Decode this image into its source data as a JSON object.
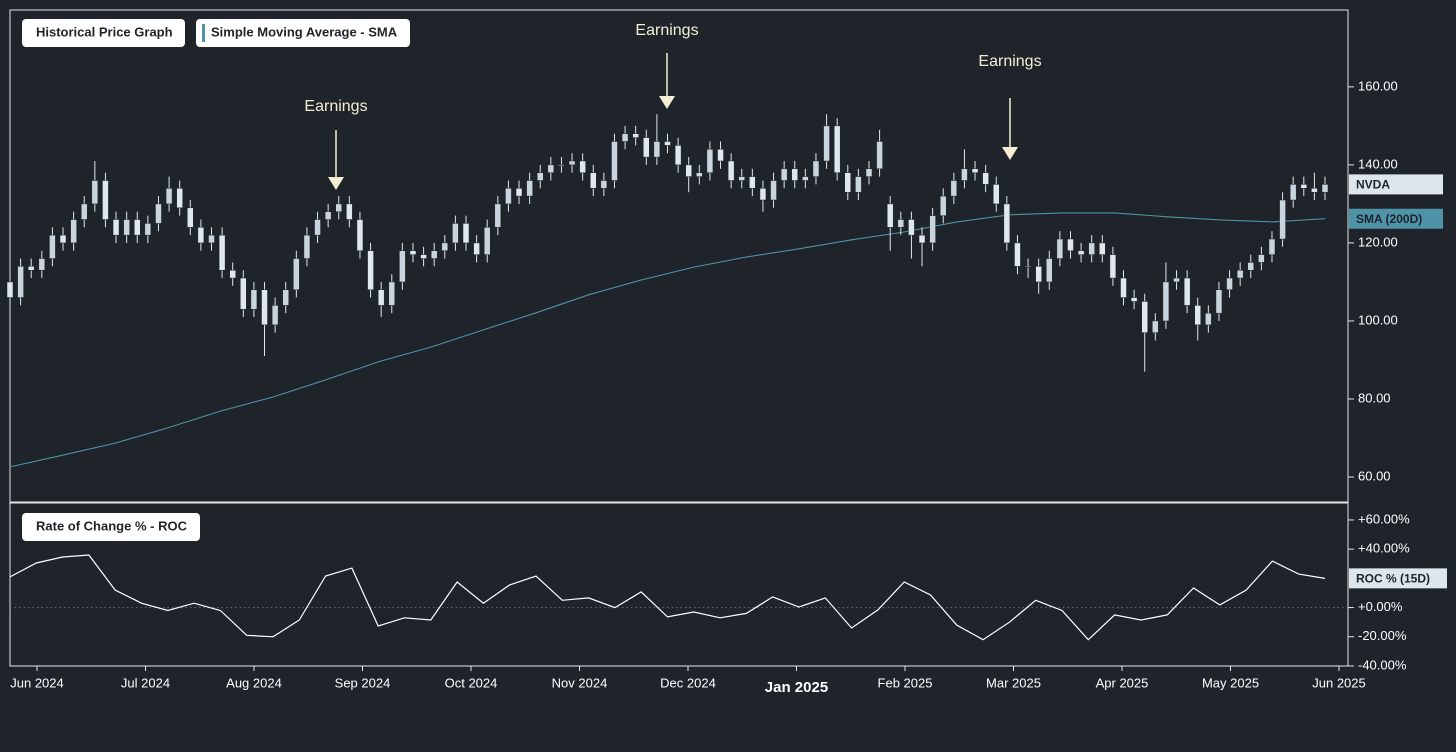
{
  "chart_data": [
    {
      "type": "candlestick",
      "legend": [
        "Historical Price Graph",
        "Simple Moving Average - SMA"
      ],
      "annotations": [
        "Earnings",
        "Earnings",
        "Earnings"
      ],
      "candles": {
        "name": "NVDA",
        "color": "#dfe8ee",
        "open": [
          110,
          106,
          114,
          113,
          116,
          122,
          120,
          126,
          130,
          136,
          126,
          122,
          126,
          122,
          125,
          130,
          134,
          129,
          124,
          120,
          122,
          113,
          111,
          103,
          108,
          99,
          104,
          108,
          116,
          122,
          126,
          128,
          130,
          126,
          118,
          108,
          104,
          110,
          118,
          117,
          116,
          118,
          120,
          125,
          120,
          117,
          124,
          130,
          134,
          132,
          136,
          138,
          140,
          140,
          141,
          138,
          134,
          136,
          146,
          148,
          147,
          142,
          146,
          145,
          140,
          137,
          138,
          144,
          141,
          136,
          137,
          134,
          131,
          136,
          139,
          136,
          137,
          141,
          150,
          138,
          133,
          137,
          139,
          130,
          124,
          126,
          122,
          120,
          127,
          132,
          136,
          139,
          138,
          135,
          130,
          120,
          114,
          114,
          110,
          116,
          121,
          118,
          117,
          120,
          117,
          111,
          106,
          105,
          97,
          100,
          110,
          111,
          104,
          99,
          102,
          108,
          111,
          113,
          115,
          117,
          121,
          131,
          135,
          134,
          133
        ],
        "high": [
          112,
          116,
          116,
          118,
          124,
          124,
          128,
          132,
          141,
          138,
          128,
          128,
          128,
          127,
          132,
          137,
          136,
          131,
          126,
          124,
          124,
          115,
          113,
          110,
          110,
          106,
          110,
          118,
          124,
          128,
          130,
          132,
          132,
          128,
          120,
          110,
          112,
          120,
          120,
          119,
          120,
          122,
          127,
          127,
          122,
          126,
          132,
          136,
          136,
          138,
          140,
          142,
          142,
          143,
          143,
          140,
          138,
          148,
          150,
          150,
          149,
          153,
          148,
          147,
          142,
          140,
          146,
          146,
          143,
          139,
          139,
          136,
          138,
          141,
          141,
          139,
          143,
          153,
          152,
          140,
          139,
          141,
          149,
          132,
          128,
          128,
          124,
          129,
          134,
          138,
          144,
          141,
          140,
          137,
          132,
          122,
          116,
          116,
          118,
          123,
          123,
          120,
          122,
          122,
          119,
          113,
          108,
          107,
          102,
          115,
          113,
          113,
          106,
          104,
          110,
          113,
          115,
          117,
          119,
          123,
          133,
          137,
          137,
          138,
          137
        ],
        "low": [
          104,
          104,
          111,
          111,
          114,
          118,
          118,
          124,
          128,
          124,
          120,
          120,
          120,
          120,
          123,
          128,
          127,
          122,
          118,
          118,
          111,
          109,
          101,
          101,
          91,
          97,
          102,
          106,
          114,
          120,
          124,
          126,
          124,
          116,
          106,
          101,
          102,
          108,
          115,
          114,
          114,
          116,
          118,
          118,
          115,
          115,
          122,
          128,
          130,
          130,
          134,
          136,
          138,
          138,
          136,
          132,
          132,
          134,
          144,
          145,
          140,
          140,
          143,
          138,
          133,
          135,
          136,
          139,
          134,
          134,
          132,
          128,
          129,
          134,
          134,
          134,
          135,
          139,
          136,
          131,
          131,
          135,
          137,
          118,
          122,
          116,
          114,
          118,
          125,
          130,
          134,
          136,
          133,
          128,
          118,
          112,
          111,
          107,
          108,
          114,
          116,
          115,
          115,
          115,
          109,
          104,
          103,
          87,
          95,
          98,
          108,
          102,
          95,
          97,
          100,
          106,
          109,
          111,
          113,
          115,
          119,
          129,
          132,
          131,
          131
        ],
        "close": [
          106,
          114,
          113,
          116,
          122,
          120,
          126,
          130,
          136,
          126,
          122,
          126,
          122,
          125,
          130,
          134,
          129,
          124,
          120,
          122,
          113,
          111,
          103,
          108,
          99,
          104,
          108,
          116,
          122,
          126,
          128,
          130,
          126,
          118,
          108,
          104,
          110,
          118,
          117,
          116,
          118,
          120,
          125,
          120,
          117,
          124,
          130,
          134,
          132,
          136,
          138,
          140,
          140,
          141,
          138,
          134,
          136,
          146,
          148,
          147,
          142,
          146,
          145,
          140,
          137,
          138,
          144,
          141,
          136,
          137,
          134,
          131,
          136,
          139,
          136,
          137,
          141,
          150,
          138,
          133,
          137,
          139,
          146,
          124,
          126,
          122,
          120,
          127,
          132,
          136,
          139,
          138,
          135,
          130,
          120,
          114,
          114,
          110,
          116,
          121,
          118,
          117,
          120,
          117,
          111,
          106,
          105,
          97,
          100,
          110,
          111,
          104,
          99,
          102,
          108,
          111,
          113,
          115,
          117,
          121,
          131,
          135,
          134,
          133,
          135
        ]
      },
      "series": [
        {
          "name": "SMA (200D)",
          "color": "#4e93a8",
          "values": [
            62.6,
            65.6,
            68.7,
            72.6,
            76.9,
            80.5,
            84.9,
            89.5,
            93.3,
            97.7,
            102.1,
            106.7,
            110.5,
            113.8,
            116.4,
            118.5,
            120.8,
            122.8,
            125.4,
            127.2,
            127.7,
            127.7,
            126.7,
            125.9,
            125.4,
            126.2
          ]
        }
      ],
      "ylim": [
        53.6,
        179.7
      ],
      "yticks": [
        {
          "value": 160,
          "label": "160.00"
        },
        {
          "value": 140,
          "label": "140.00"
        },
        {
          "value": 120,
          "label": "120.00"
        },
        {
          "value": 100,
          "label": "100.00"
        },
        {
          "value": 80,
          "label": "80.00"
        },
        {
          "value": 60,
          "label": "60.00"
        }
      ]
    },
    {
      "type": "line",
      "legend": [
        "Rate of Change % - ROC"
      ],
      "series": [
        {
          "name": "ROC % (15D)",
          "color": "#ffffff",
          "values": [
            21,
            30.5,
            34.6,
            36,
            12,
            3,
            -2,
            3,
            -2,
            -19,
            -20,
            -8.5,
            21.6,
            27,
            -12.6,
            -7,
            -8.5,
            17.5,
            3,
            15.5,
            21.6,
            5,
            6.6,
            0,
            10.7,
            -6.4,
            -3,
            -7,
            -4,
            7.3,
            0.4,
            6.6,
            -14,
            -1.6,
            17.5,
            8.6,
            -12,
            -22,
            -10,
            5,
            -2,
            -22,
            -5,
            -8.5,
            -5,
            13.4,
            1.8,
            12,
            31.8,
            22.9,
            20
          ]
        }
      ],
      "ylim": [
        -40,
        71.6
      ],
      "yticks": [
        {
          "value": 60,
          "label": "+60.00%"
        },
        {
          "value": 40,
          "label": "+40.00%"
        },
        {
          "value": 0,
          "label": "+0.00%"
        },
        {
          "value": -20,
          "label": "-20.00%"
        },
        {
          "value": -40,
          "label": "-40.00%"
        }
      ],
      "xticks": [
        "Jun 2024",
        "Jul 2024",
        "Aug 2024",
        "Sep 2024",
        "Oct 2024",
        "Nov 2024",
        "Dec 2024",
        "Jan 2025",
        "Feb 2025",
        "Mar 2025",
        "Apr 2025",
        "May 2025",
        "Jun 2025"
      ]
    }
  ]
}
